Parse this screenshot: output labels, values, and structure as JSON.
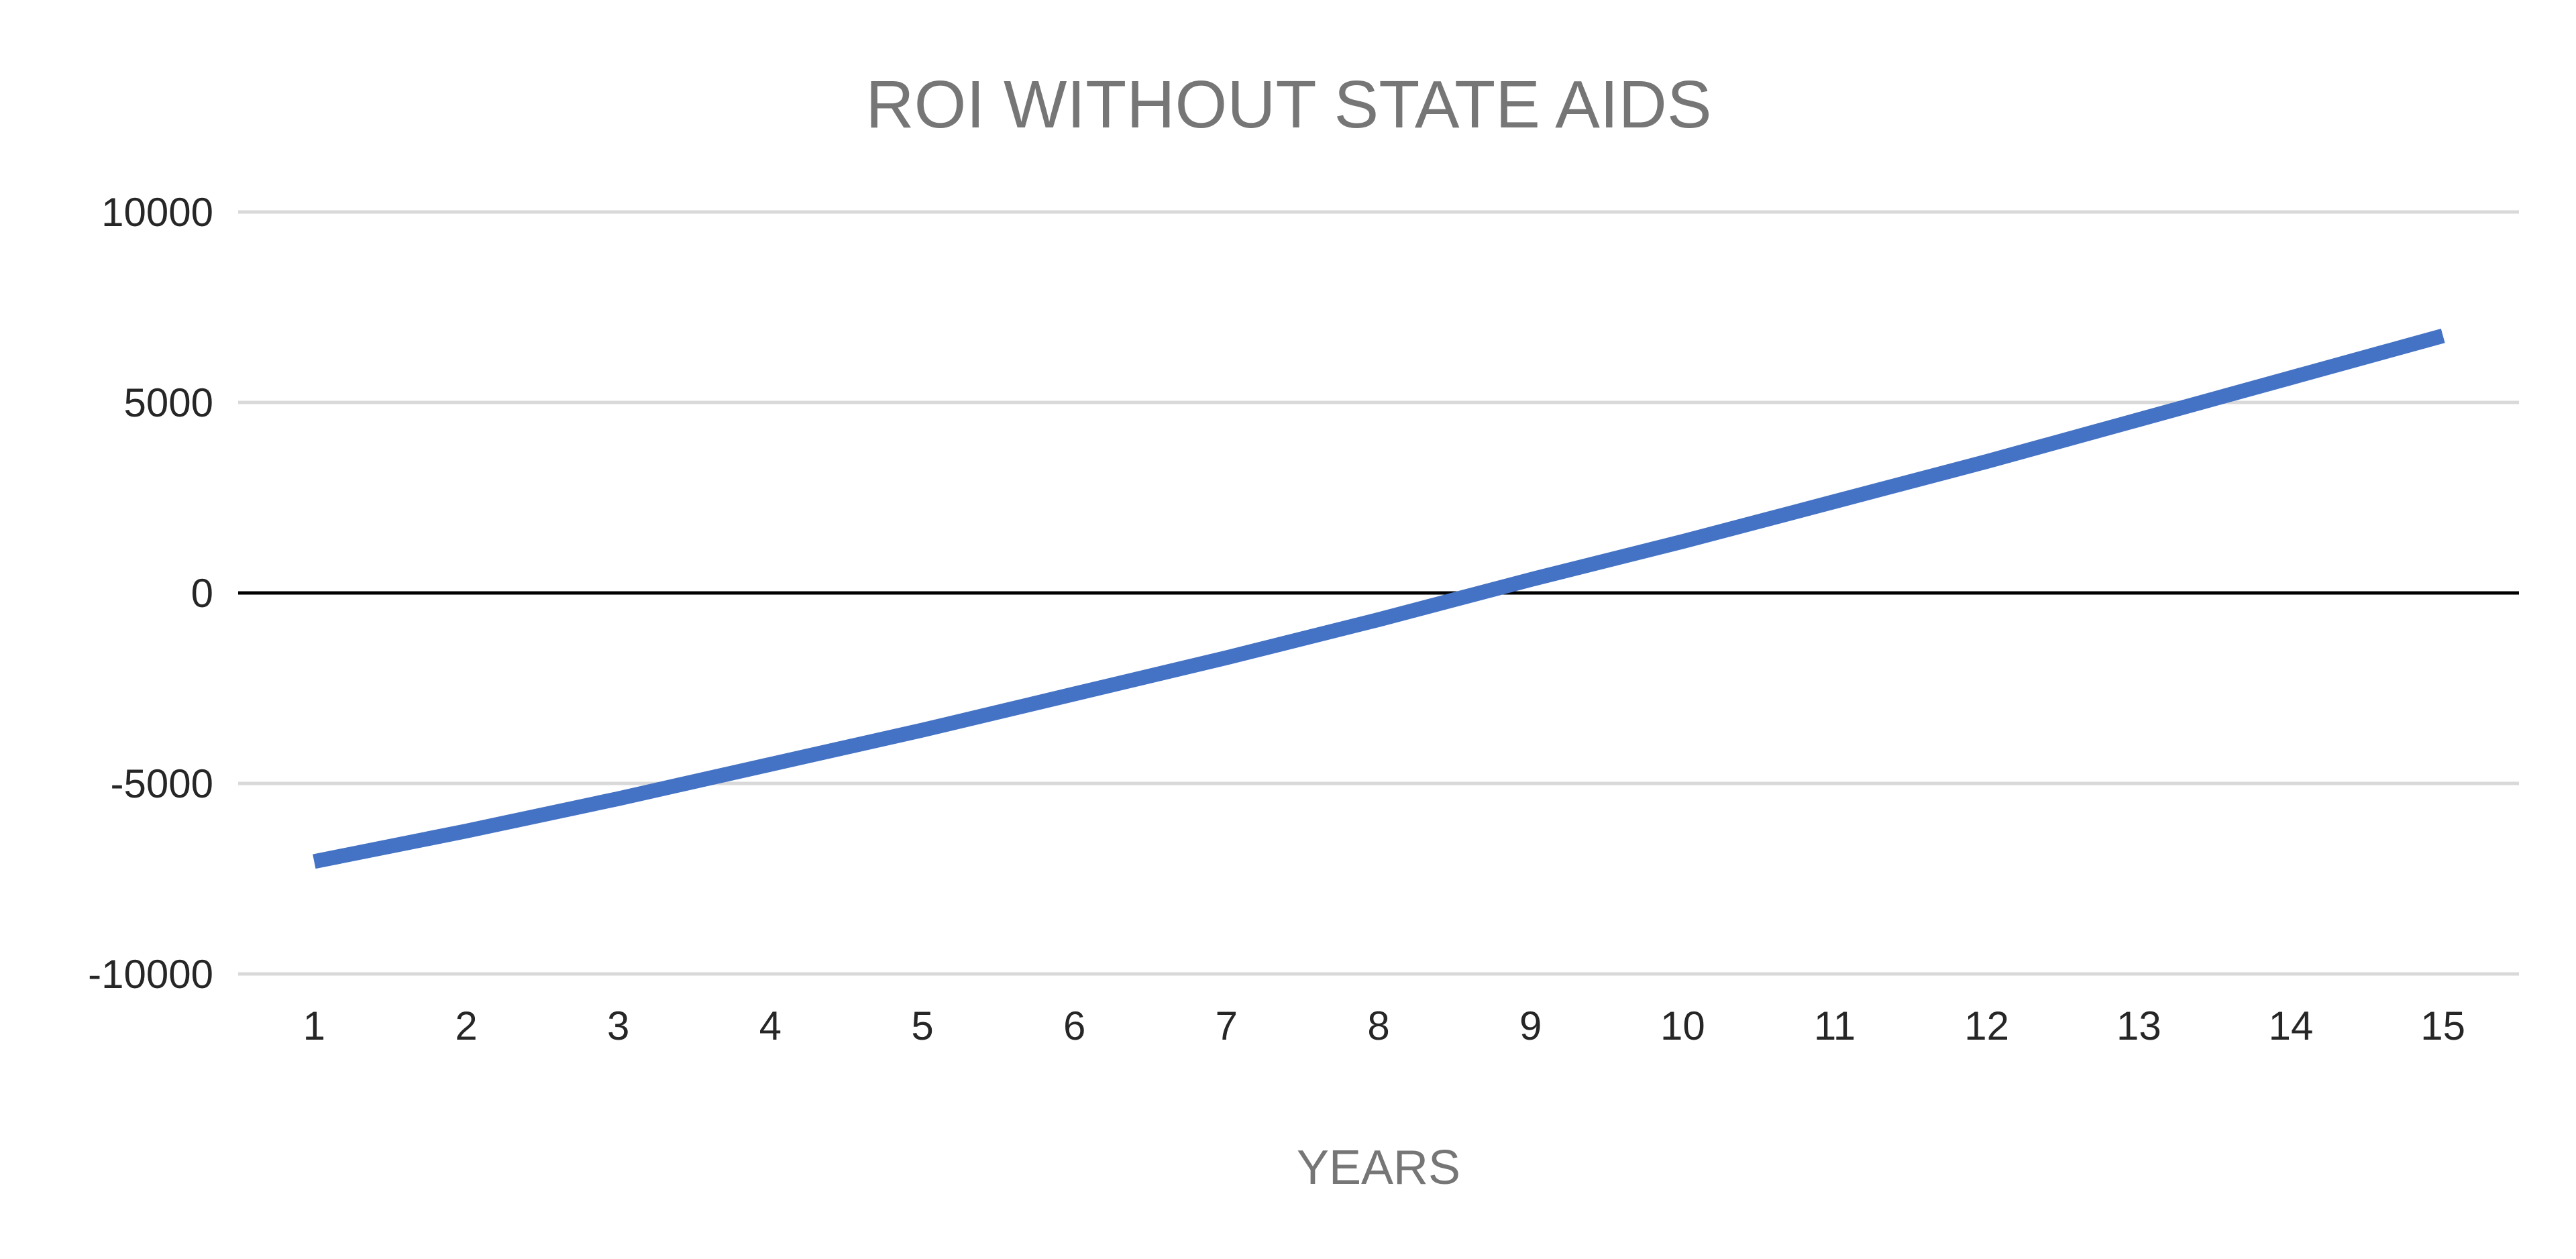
{
  "chart_data": {
    "type": "line",
    "title": "ROI WITHOUT STATE AIDS",
    "xlabel": "YEARS",
    "ylabel": "",
    "categories": [
      "1",
      "2",
      "3",
      "4",
      "5",
      "6",
      "7",
      "8",
      "9",
      "10",
      "11",
      "12",
      "13",
      "14",
      "15"
    ],
    "series": [
      {
        "values": [
          -7050,
          -6250,
          -5400,
          -4500,
          -3600,
          -2650,
          -1700,
          -700,
          350,
          1350,
          2400,
          3450,
          4550,
          5650,
          6750
        ],
        "color": "#4472C4"
      }
    ],
    "ylim": [
      -10000,
      10000
    ],
    "yticks": [
      "10000",
      "5000",
      "0",
      "-5000",
      "-10000"
    ],
    "ytick_values": [
      10000,
      5000,
      0,
      -5000,
      -10000
    ],
    "grid": true,
    "legend": "none",
    "gridline_color": "#D9D9D9",
    "zero_line_color": "#000000"
  }
}
